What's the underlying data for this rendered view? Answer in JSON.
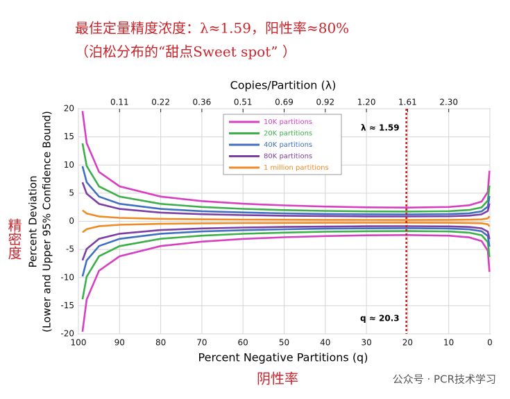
{
  "chart_data": {
    "type": "line",
    "title": "最佳定量精度浓度：λ≈1.59，阳性率≈80%",
    "subtitle": "（泊松分布的“甜点Sweet spot” ）",
    "x_label": "Percent Negative Partitions (q)",
    "x2_label": "Copies/Partition (λ)",
    "y_label": [
      "Percent Deviation",
      "(Lower and Upper 95% Confidence Bound)"
    ],
    "y_side_note": "精密度",
    "x_side_note": "阴性率",
    "watermark": "公众号 · PCR技术学习",
    "x": [
      99,
      98,
      95,
      90,
      80,
      70,
      60,
      50,
      40,
      30,
      20,
      10,
      5,
      2,
      0.5,
      0.1
    ],
    "series": [
      {
        "name": "10K partitions",
        "color": "#d640c0",
        "values": [
          19.6,
          13.9,
          8.77,
          6.22,
          4.39,
          3.6,
          3.13,
          2.83,
          2.62,
          2.49,
          2.44,
          2.55,
          2.85,
          3.51,
          5.22,
          8.98
        ],
        "lower": [
          -19.6,
          -13.9,
          -8.77,
          -6.22,
          -4.39,
          -3.6,
          -3.13,
          -2.83,
          -2.62,
          -2.49,
          -2.44,
          -2.55,
          -2.85,
          -3.51,
          -5.22,
          -8.98
        ]
      },
      {
        "name": "20K partitions",
        "color": "#3caf4a",
        "values": [
          13.86,
          9.83,
          6.2,
          4.4,
          3.1,
          2.55,
          2.21,
          2.0,
          1.85,
          1.76,
          1.73,
          1.8,
          2.02,
          2.48,
          3.69,
          6.35
        ],
        "lower": [
          -13.86,
          -9.83,
          -6.2,
          -4.4,
          -3.1,
          -2.55,
          -2.21,
          -2.0,
          -1.85,
          -1.76,
          -1.73,
          -1.8,
          -2.02,
          -2.48,
          -3.69,
          -6.35
        ]
      },
      {
        "name": "40K partitions",
        "color": "#3f6fc0",
        "values": [
          9.8,
          6.95,
          4.39,
          3.11,
          2.2,
          1.8,
          1.57,
          1.42,
          1.31,
          1.25,
          1.22,
          1.28,
          1.43,
          1.76,
          2.61,
          4.49
        ],
        "lower": [
          -9.8,
          -6.95,
          -4.39,
          -3.11,
          -2.2,
          -1.8,
          -1.57,
          -1.42,
          -1.31,
          -1.25,
          -1.22,
          -1.28,
          -1.43,
          -1.76,
          -2.61,
          -4.49
        ]
      },
      {
        "name": "80K partitions",
        "color": "#7b3fa3",
        "values": [
          6.93,
          4.91,
          3.1,
          2.2,
          1.55,
          1.27,
          1.11,
          1.0,
          0.93,
          0.88,
          0.86,
          0.9,
          1.01,
          1.24,
          1.84,
          3.17
        ],
        "lower": [
          -6.93,
          -4.91,
          -3.1,
          -2.2,
          -1.55,
          -1.27,
          -1.11,
          -1.0,
          -0.93,
          -0.88,
          -0.86,
          -0.9,
          -1.01,
          -1.24,
          -1.84,
          -3.17
        ]
      },
      {
        "name": "1 million partitions",
        "color": "#f08a24",
        "values": [
          1.96,
          1.39,
          0.88,
          0.62,
          0.44,
          0.36,
          0.31,
          0.28,
          0.26,
          0.25,
          0.24,
          0.26,
          0.29,
          0.35,
          0.52,
          0.9
        ],
        "lower": [
          -1.96,
          -1.39,
          -0.88,
          -0.62,
          -0.44,
          -0.36,
          -0.31,
          -0.28,
          -0.26,
          -0.25,
          -0.24,
          -0.26,
          -0.29,
          -0.35,
          -0.52,
          -0.9
        ]
      }
    ],
    "xlim": [
      100,
      0
    ],
    "ylim": [
      -20,
      20
    ],
    "xticks": [
      100,
      90,
      80,
      70,
      60,
      50,
      40,
      30,
      20,
      10,
      0
    ],
    "yticks": [
      -20,
      -15,
      -10,
      -5,
      0,
      5,
      10,
      15,
      20
    ],
    "x2ticks": [
      {
        "value": 90,
        "label": "0.11"
      },
      {
        "value": 80,
        "label": "0.22"
      },
      {
        "value": 70,
        "label": "0.36"
      },
      {
        "value": 60,
        "label": "0.51"
      },
      {
        "value": 50,
        "label": "0.69"
      },
      {
        "value": 40,
        "label": "0.92"
      },
      {
        "value": 30,
        "label": "1.20"
      },
      {
        "value": 20,
        "label": "1.61"
      },
      {
        "value": 10,
        "label": "2.30"
      }
    ],
    "vline_x": 20.3,
    "annotations": [
      "λ ≈ 1.59",
      "q ≈ 20.3"
    ],
    "grid": true
  }
}
